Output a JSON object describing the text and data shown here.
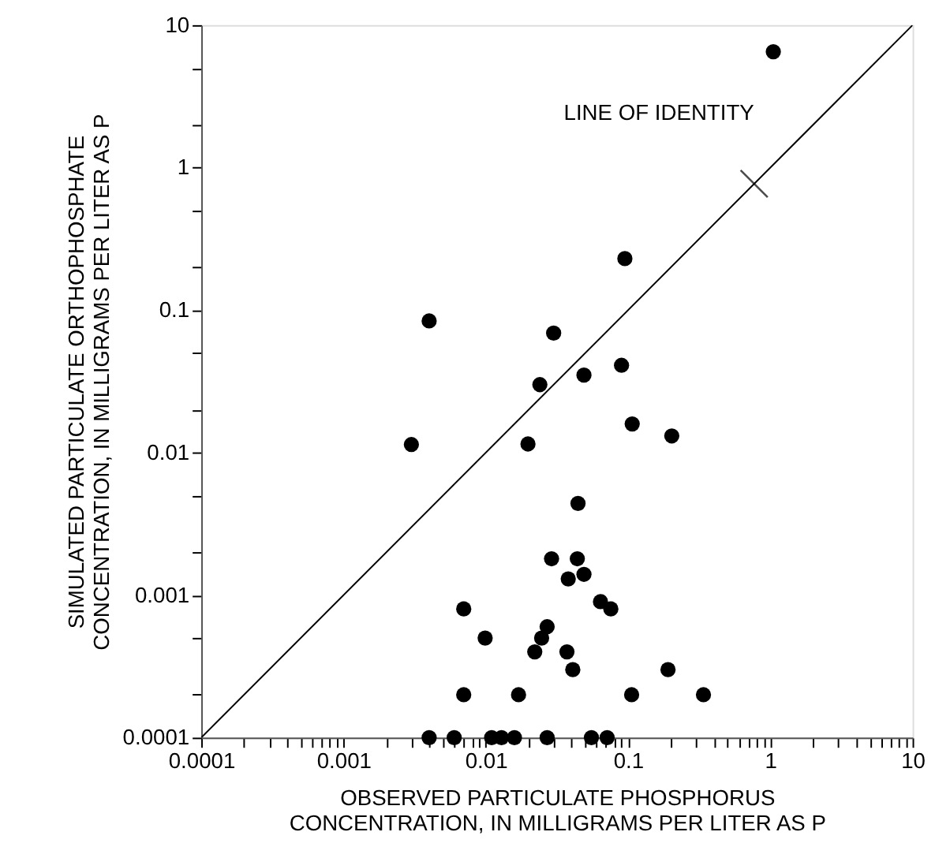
{
  "chart_data": {
    "type": "scatter",
    "xlabel": "OBSERVED PARTICULATE PHOSPHORUS\nCONCENTRATION, IN MILLIGRAMS PER LITER AS P",
    "ylabel": "SIMULATED PARTICULATE ORTHOPHOSPHATE\nCONCENTRATION, IN MILLIGRAMS PER LITER AS P",
    "log": "xy",
    "grid": false,
    "xlim": [
      0.0001,
      10
    ],
    "ylim": [
      0.0001,
      10
    ],
    "xticks": [
      0.0001,
      {
        "value": 0.0002,
        "label": null
      },
      {
        "value": 0.0003,
        "label": null
      },
      {
        "value": 0.0004,
        "label": null
      },
      {
        "value": 0.0005,
        "label": null
      },
      {
        "value": 0.0006,
        "label": null
      },
      {
        "value": 0.0007,
        "label": null
      },
      {
        "value": 0.0008,
        "label": null
      },
      {
        "value": 0.0009,
        "label": null
      },
      0.001,
      {
        "value": 0.002,
        "label": null
      },
      {
        "value": 0.003,
        "label": null
      },
      {
        "value": 0.004,
        "label": null
      },
      {
        "value": 0.005,
        "label": null
      },
      {
        "value": 0.006,
        "label": null
      },
      {
        "value": 0.007,
        "label": null
      },
      {
        "value": 0.008,
        "label": null
      },
      {
        "value": 0.009,
        "label": null
      },
      0.01,
      {
        "value": 0.02,
        "label": null
      },
      {
        "value": 0.03,
        "label": null
      },
      {
        "value": 0.04,
        "label": null
      },
      {
        "value": 0.05,
        "label": null
      },
      {
        "value": 0.06,
        "label": null
      },
      {
        "value": 0.07,
        "label": null
      },
      {
        "value": 0.08,
        "label": null
      },
      {
        "value": 0.09,
        "label": null
      },
      0.1,
      {
        "value": 0.2,
        "label": null
      },
      {
        "value": 0.3,
        "label": null
      },
      {
        "value": 0.4,
        "label": null
      },
      {
        "value": 0.5,
        "label": null
      },
      {
        "value": 0.6,
        "label": null
      },
      {
        "value": 0.7,
        "label": null
      },
      {
        "value": 0.8,
        "label": null
      },
      {
        "value": 0.9,
        "label": null
      },
      1,
      {
        "value": 2,
        "label": null
      },
      {
        "value": 3,
        "label": null
      },
      {
        "value": 4,
        "label": null
      },
      {
        "value": 5,
        "label": null
      },
      {
        "value": 6,
        "label": null
      },
      {
        "value": 7,
        "label": null
      },
      {
        "value": 8,
        "label": null
      },
      {
        "value": 9,
        "label": null
      },
      10
    ],
    "yticks": [
      0.0001,
      {
        "value": 0.0002,
        "label": null
      },
      {
        "value": 0.0005,
        "label": null
      },
      0.001,
      {
        "value": 0.002,
        "label": null
      },
      {
        "value": 0.005,
        "label": null
      },
      0.01,
      {
        "value": 0.02,
        "label": null
      },
      {
        "value": 0.05,
        "label": null
      },
      0.1,
      {
        "value": 0.2,
        "label": null
      },
      {
        "value": 0.5,
        "label": null
      },
      1,
      {
        "value": 2,
        "label": null
      },
      {
        "value": 5,
        "label": null
      },
      10
    ],
    "annotations": [
      {
        "text": "LINE OF IDENTITY",
        "x": 0.77,
        "y": 0.77
      }
    ],
    "series": [
      {
        "color": "#000000",
        "marker": "circle",
        "x": [
          1.05,
          0.095,
          0.004,
          0.03,
          0.09,
          0.049,
          0.024,
          0.107,
          0.203,
          0.003,
          0.0198,
          0.0445,
          0.029,
          0.044,
          0.049,
          0.038,
          0.064,
          0.0757,
          0.007,
          0.0099,
          0.027,
          0.0247,
          0.0221,
          0.0372,
          0.0409,
          0.191,
          0.007,
          0.017,
          0.106,
          0.339,
          0.004,
          0.006,
          0.011,
          0.0129,
          0.0159,
          0.027,
          0.0553,
          0.0713
        ],
        "values": [
          6.5,
          0.23,
          0.084,
          0.069,
          0.041,
          0.035,
          0.03,
          0.0159,
          0.0131,
          0.0114,
          0.0115,
          0.0044,
          0.0018,
          0.0018,
          0.0014,
          0.0013,
          0.0009,
          0.0008,
          0.0008,
          0.0005,
          0.0006,
          0.0005,
          0.0004,
          0.0004,
          0.0003,
          0.0003,
          0.0002,
          0.0002,
          0.0002,
          0.0002,
          0.0001,
          0.0001,
          0.0001,
          0.0001,
          0.0001,
          0.0001,
          0.0001,
          0.0001
        ]
      },
      {
        "type": "line",
        "color": "#000000",
        "marker": "none",
        "x": [
          0.0001,
          10
        ],
        "values": [
          0.0001,
          10
        ]
      }
    ]
  }
}
